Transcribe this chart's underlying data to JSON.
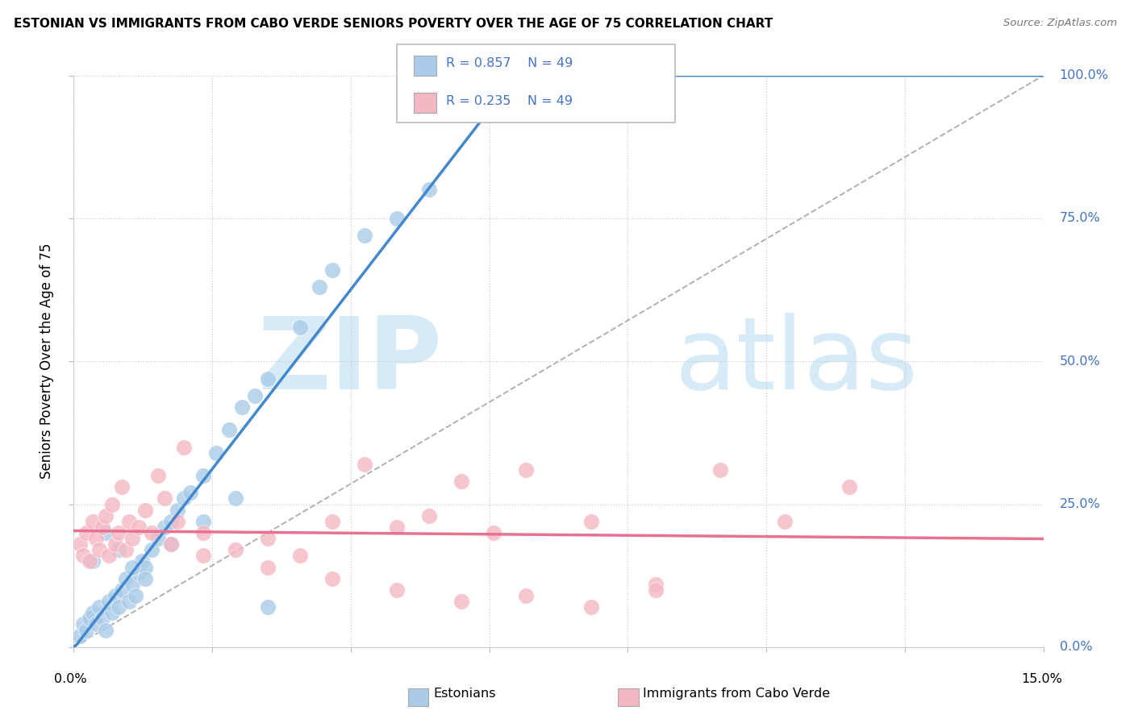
{
  "title": "ESTONIAN VS IMMIGRANTS FROM CABO VERDE SENIORS POVERTY OVER THE AGE OF 75 CORRELATION CHART",
  "source": "Source: ZipAtlas.com",
  "ylabel": "Seniors Poverty Over the Age of 75",
  "ytick_labels": [
    "0.0%",
    "25.0%",
    "50.0%",
    "75.0%",
    "100.0%"
  ],
  "ytick_values": [
    0,
    25,
    50,
    75,
    100
  ],
  "xlim": [
    0,
    15
  ],
  "ylim": [
    0,
    100
  ],
  "label1": "Estonians",
  "label2": "Immigrants from Cabo Verde",
  "blue_color": "#aacce8",
  "pink_color": "#f4b8c4",
  "blue_line_color": "#4488cc",
  "pink_line_color": "#e87090",
  "blue_scatter_x": [
    0.1,
    0.15,
    0.2,
    0.25,
    0.3,
    0.35,
    0.4,
    0.45,
    0.5,
    0.55,
    0.6,
    0.65,
    0.7,
    0.75,
    0.8,
    0.85,
    0.9,
    0.95,
    1.0,
    1.05,
    1.1,
    1.2,
    1.3,
    1.4,
    1.5,
    1.6,
    1.7,
    1.8,
    2.0,
    2.2,
    2.4,
    2.6,
    2.8,
    3.0,
    3.5,
    3.8,
    4.0,
    4.5,
    5.0,
    5.5,
    0.3,
    0.5,
    0.7,
    0.9,
    1.1,
    1.5,
    2.0,
    2.5,
    3.0
  ],
  "blue_scatter_y": [
    2,
    4,
    3,
    5,
    6,
    4,
    7,
    5,
    3,
    8,
    6,
    9,
    7,
    10,
    12,
    8,
    11,
    9,
    13,
    15,
    14,
    17,
    19,
    21,
    22,
    24,
    26,
    27,
    30,
    34,
    38,
    42,
    44,
    47,
    56,
    63,
    66,
    72,
    75,
    80,
    15,
    20,
    17,
    14,
    12,
    18,
    22,
    26,
    7
  ],
  "pink_scatter_x": [
    0.1,
    0.15,
    0.2,
    0.25,
    0.3,
    0.35,
    0.4,
    0.45,
    0.5,
    0.55,
    0.6,
    0.65,
    0.7,
    0.75,
    0.8,
    0.85,
    0.9,
    1.0,
    1.1,
    1.2,
    1.3,
    1.4,
    1.5,
    1.6,
    1.7,
    2.0,
    2.5,
    3.0,
    3.5,
    4.0,
    4.5,
    5.0,
    5.5,
    6.0,
    6.5,
    7.0,
    8.0,
    9.0,
    10.0,
    11.0,
    12.0,
    2.0,
    3.0,
    4.0,
    5.0,
    6.0,
    7.0,
    8.0,
    9.0
  ],
  "pink_scatter_y": [
    18,
    16,
    20,
    15,
    22,
    19,
    17,
    21,
    23,
    16,
    25,
    18,
    20,
    28,
    17,
    22,
    19,
    21,
    24,
    20,
    30,
    26,
    18,
    22,
    35,
    20,
    17,
    19,
    16,
    22,
    32,
    21,
    23,
    29,
    20,
    31,
    22,
    11,
    31,
    22,
    28,
    16,
    14,
    12,
    10,
    8,
    9,
    7,
    10
  ],
  "grid_color": "#cccccc",
  "background_color": "#ffffff",
  "legend_text_color": "#4472c4",
  "right_label_color": "#4472c4"
}
